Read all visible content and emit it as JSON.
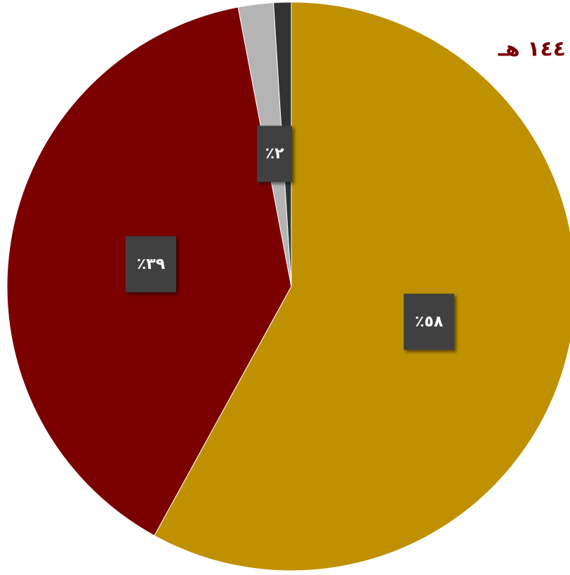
{
  "chart_data": {
    "type": "pie",
    "title": "١٤٤ هـ",
    "values": [
      58,
      39,
      2,
      1
    ],
    "value_labels": [
      "٪٥٨",
      "٪٣٩",
      "٪٢",
      null
    ],
    "colors": [
      "#bf9000",
      "#7b0000",
      "#b4b4b4",
      "#333333"
    ]
  }
}
